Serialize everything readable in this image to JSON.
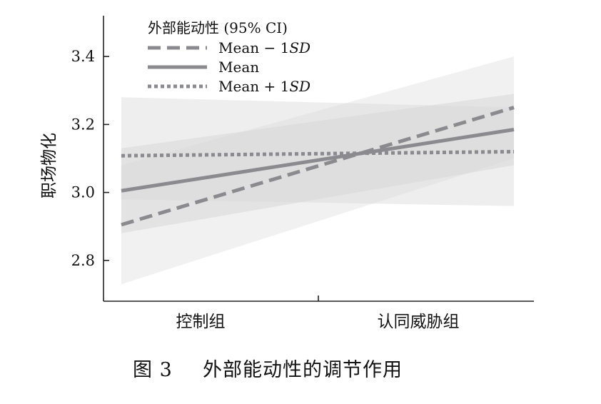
{
  "chart_data": {
    "type": "line",
    "categories": [
      "控制组",
      "认同威胁组"
    ],
    "ylabel": "职场物化",
    "xlabel": "",
    "ylim": [
      2.68,
      3.52
    ],
    "yticks": [
      "2.8",
      "3.0",
      "3.2",
      "3.4"
    ],
    "legend": {
      "title": "外部能动性 (95% CI)",
      "placement": "top-left",
      "entries": [
        {
          "prefix": "Mean − 1",
          "italic": "SD"
        },
        {
          "prefix": "Mean",
          "italic": ""
        },
        {
          "prefix": "Mean + 1",
          "italic": "SD"
        }
      ]
    },
    "series": [
      {
        "name": "Mean − 1SD",
        "style": "dashed",
        "values": [
          2.905,
          3.25
        ],
        "ci_lower": [
          2.73,
          3.1
        ],
        "ci_upper": [
          3.08,
          3.4
        ]
      },
      {
        "name": "Mean",
        "style": "solid",
        "values": [
          3.005,
          3.185
        ],
        "ci_lower": [
          2.88,
          3.08
        ],
        "ci_upper": [
          3.13,
          3.29
        ]
      },
      {
        "name": "Mean + 1SD",
        "style": "dotted",
        "values": [
          3.108,
          3.12
        ],
        "ci_lower": [
          2.98,
          2.96
        ],
        "ci_upper": [
          3.28,
          3.25
        ]
      }
    ],
    "colors": {
      "line": "#8a8a8f",
      "band": "#d6d6d8",
      "axis": "#222222"
    }
  },
  "caption": {
    "label": "图 3",
    "text": "外部能动性的调节作用"
  }
}
